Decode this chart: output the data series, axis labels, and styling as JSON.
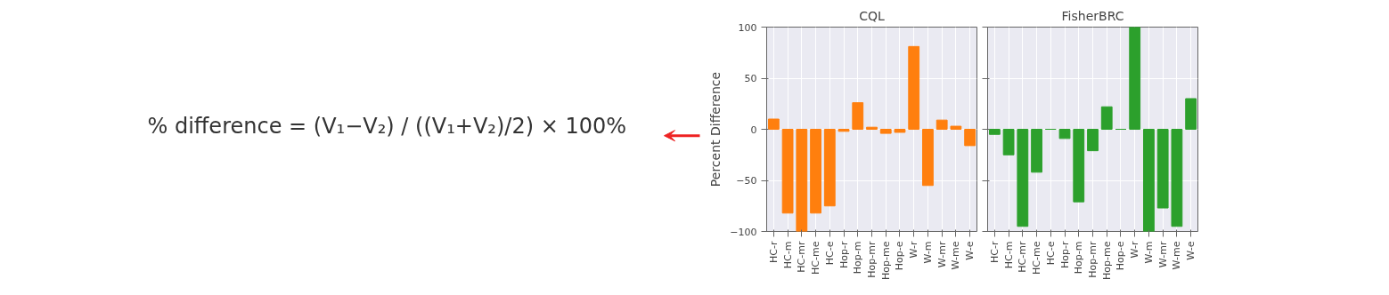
{
  "chart_data": [
    {
      "type": "other",
      "annotations": [
        "% difference = (V₁−V₂) / ((V₁+V₂)/2) × 100%"
      ]
    },
    {
      "type": "bar",
      "title": "CQL",
      "ylabel": "Percent Difference",
      "categories": [
        "HC-r",
        "HC-m",
        "HC-mr",
        "HC-me",
        "HC-e",
        "Hop-r",
        "Hop-m",
        "Hop-mr",
        "Hop-me",
        "Hop-e",
        "W-r",
        "W-m",
        "W-mr",
        "W-me",
        "W-e"
      ],
      "series": [
        {
          "color": "#ff7f0e",
          "values": [
            10,
            -82,
            -100,
            -82,
            -75,
            -2,
            26,
            2,
            -4,
            -3,
            81,
            -55,
            9,
            3,
            -16
          ]
        }
      ],
      "ylim": [
        -100,
        100
      ],
      "yticks": [
        -100,
        -50,
        0,
        50,
        100
      ],
      "grid": true
    },
    {
      "type": "bar",
      "title": "FisherBRC",
      "categories": [
        "HC-r",
        "HC-m",
        "HC-mr",
        "HC-me",
        "HC-e",
        "Hop-r",
        "Hop-m",
        "Hop-mr",
        "Hop-me",
        "Hop-e",
        "W-r",
        "W-m",
        "W-mr",
        "W-me",
        "W-e"
      ],
      "series": [
        {
          "color": "#2ca02c",
          "values": [
            -5,
            -25,
            -95,
            -42,
            0,
            -9,
            -71,
            -21,
            22,
            0,
            100,
            -100,
            -77,
            -95,
            30
          ]
        }
      ],
      "ylim": [
        -100,
        100
      ],
      "yticks": [
        -100,
        -50,
        0,
        50,
        100
      ],
      "grid": true,
      "tick_labels": "x"
    }
  ]
}
